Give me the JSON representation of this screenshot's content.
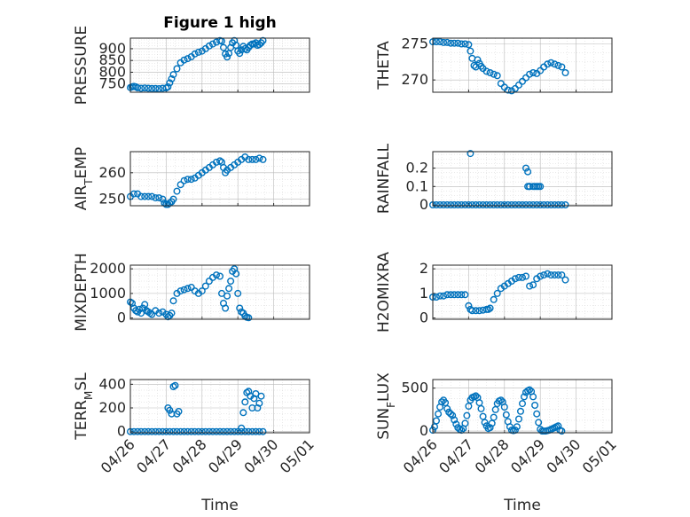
{
  "figure": {
    "title": "Figure 1 high",
    "xlabel": "Time",
    "xticks": [
      "04/26",
      "04/27",
      "04/28",
      "04/29",
      "04/30",
      "05/01"
    ],
    "marker_color": "#0072bd"
  },
  "chart_data": [
    {
      "id": "pressure",
      "type": "scatter",
      "title": "Figure 1 high",
      "ylabel": "PRESSURE",
      "ylabel_parts": [
        {
          "t": "PRESSURE"
        }
      ],
      "yticks": [
        750,
        800,
        850,
        900
      ],
      "ylim": [
        715,
        945
      ],
      "xlim": [
        0,
        5
      ],
      "x": [
        0.0,
        0.05,
        0.1,
        0.15,
        0.2,
        0.3,
        0.4,
        0.5,
        0.6,
        0.7,
        0.8,
        0.9,
        1.0,
        1.05,
        1.1,
        1.15,
        1.2,
        1.3,
        1.4,
        1.5,
        1.6,
        1.7,
        1.8,
        1.9,
        2.0,
        2.1,
        2.2,
        2.3,
        2.4,
        2.5,
        2.55,
        2.6,
        2.65,
        2.7,
        2.75,
        2.8,
        2.85,
        2.9,
        2.95,
        3.0,
        3.05,
        3.1,
        3.15,
        3.2,
        3.25,
        3.3,
        3.35,
        3.4,
        3.45,
        3.5,
        3.55,
        3.6,
        3.65,
        3.7
      ],
      "y": [
        735,
        738,
        740,
        738,
        734,
        732,
        733,
        732,
        731,
        731,
        730,
        732,
        733,
        738,
        755,
        772,
        790,
        815,
        840,
        852,
        858,
        866,
        878,
        885,
        890,
        900,
        912,
        920,
        928,
        935,
        932,
        905,
        878,
        865,
        880,
        905,
        925,
        935,
        915,
        890,
        880,
        895,
        910,
        900,
        895,
        905,
        915,
        920,
        920,
        925,
        915,
        918,
        925,
        935
      ]
    },
    {
      "id": "theta",
      "type": "scatter",
      "ylabel": "THETA",
      "ylabel_parts": [
        {
          "t": "THETA"
        }
      ],
      "yticks": [
        270,
        275
      ],
      "ylim": [
        268.3,
        275.8
      ],
      "xlim": [
        0,
        5
      ],
      "x": [
        0.0,
        0.1,
        0.2,
        0.3,
        0.4,
        0.5,
        0.6,
        0.7,
        0.8,
        0.9,
        1.0,
        1.05,
        1.1,
        1.15,
        1.2,
        1.25,
        1.3,
        1.35,
        1.4,
        1.5,
        1.6,
        1.7,
        1.8,
        1.9,
        2.0,
        2.1,
        2.2,
        2.3,
        2.4,
        2.5,
        2.6,
        2.7,
        2.8,
        2.9,
        3.0,
        3.1,
        3.2,
        3.3,
        3.4,
        3.5,
        3.6,
        3.7
      ],
      "y": [
        275.3,
        275.3,
        275.3,
        275.2,
        275.2,
        275.1,
        275.1,
        275.1,
        275.0,
        275.0,
        274.9,
        274.0,
        273.0,
        272.0,
        271.8,
        272.8,
        272.3,
        271.9,
        271.6,
        271.2,
        271.0,
        270.8,
        270.6,
        269.5,
        269.0,
        268.6,
        268.5,
        268.8,
        269.3,
        269.8,
        270.3,
        270.8,
        271.0,
        270.9,
        271.3,
        271.8,
        272.2,
        272.4,
        272.2,
        272.0,
        271.8,
        271.0
      ]
    },
    {
      "id": "air_temp",
      "type": "scatter",
      "ylabel": "AIR_TEMP",
      "ylabel_parts": [
        {
          "t": "AIR"
        },
        {
          "t": "T",
          "sub": true
        },
        {
          "t": "EMP"
        }
      ],
      "yticks": [
        250,
        260
      ],
      "ylim": [
        247.5,
        268
      ],
      "xlim": [
        0,
        5
      ],
      "x": [
        0.0,
        0.1,
        0.2,
        0.3,
        0.4,
        0.5,
        0.6,
        0.7,
        0.8,
        0.9,
        0.95,
        1.0,
        1.05,
        1.1,
        1.15,
        1.2,
        1.3,
        1.4,
        1.5,
        1.6,
        1.7,
        1.8,
        1.9,
        2.0,
        2.1,
        2.2,
        2.3,
        2.4,
        2.5,
        2.55,
        2.6,
        2.65,
        2.7,
        2.8,
        2.9,
        3.0,
        3.1,
        3.2,
        3.3,
        3.4,
        3.5,
        3.6,
        3.7
      ],
      "y": [
        251,
        252,
        252,
        251,
        251,
        251,
        251,
        250.5,
        250.5,
        250,
        248.5,
        248,
        248,
        248.5,
        249,
        250,
        253,
        255.5,
        257,
        257.5,
        257.5,
        258,
        259,
        260,
        261,
        262,
        263,
        264,
        264.5,
        264,
        262,
        260,
        261,
        262,
        263,
        264,
        265,
        266,
        265,
        265,
        265,
        265.5,
        265
      ]
    },
    {
      "id": "rainfall",
      "type": "scatter",
      "ylabel": "RAINFALL",
      "ylabel_parts": [
        {
          "t": "RAINFALL"
        }
      ],
      "yticks": [
        0,
        0.1,
        0.2
      ],
      "ylim": [
        -0.005,
        0.29
      ],
      "xlim": [
        0,
        5
      ],
      "x": [
        0.0,
        0.1,
        0.2,
        0.3,
        0.4,
        0.5,
        0.6,
        0.7,
        0.8,
        0.9,
        1.0,
        1.1,
        1.2,
        1.3,
        1.4,
        1.5,
        1.6,
        1.7,
        1.8,
        1.9,
        2.0,
        2.1,
        2.2,
        2.3,
        2.4,
        2.5,
        2.6,
        2.7,
        2.8,
        2.9,
        3.0,
        3.1,
        3.2,
        3.3,
        3.4,
        3.5,
        3.6,
        3.7,
        1.05,
        2.6,
        2.65,
        2.65,
        2.7,
        2.7,
        2.8,
        2.85,
        2.9,
        2.95,
        3.0
      ],
      "y": [
        0,
        0,
        0,
        0,
        0,
        0,
        0,
        0,
        0,
        0,
        0,
        0,
        0,
        0,
        0,
        0,
        0,
        0,
        0,
        0,
        0,
        0,
        0,
        0,
        0,
        0,
        0,
        0,
        0,
        0,
        0,
        0,
        0,
        0,
        0,
        0,
        0,
        0,
        0.28,
        0.2,
        0.18,
        0.1,
        0.1,
        0.1,
        0.1,
        0.1,
        0.1,
        0.1,
        0.1
      ]
    },
    {
      "id": "mixdepth",
      "type": "scatter",
      "ylabel": "MIXDEPTH",
      "ylabel_parts": [
        {
          "t": "MIXDEPTH"
        }
      ],
      "yticks": [
        0,
        1000,
        2000
      ],
      "ylim": [
        -50,
        2150
      ],
      "xlim": [
        0,
        5
      ],
      "x": [
        0.0,
        0.05,
        0.1,
        0.15,
        0.2,
        0.25,
        0.3,
        0.35,
        0.4,
        0.45,
        0.5,
        0.55,
        0.6,
        0.7,
        0.8,
        0.9,
        1.0,
        1.05,
        1.1,
        1.15,
        1.2,
        1.3,
        1.4,
        1.5,
        1.6,
        1.7,
        1.8,
        1.9,
        2.0,
        2.1,
        2.2,
        2.3,
        2.4,
        2.5,
        2.55,
        2.6,
        2.65,
        2.7,
        2.75,
        2.8,
        2.85,
        2.9,
        2.95,
        3.0,
        3.05,
        3.1,
        3.15,
        3.2,
        3.25,
        3.3
      ],
      "y": [
        650,
        600,
        400,
        300,
        250,
        350,
        200,
        400,
        550,
        300,
        250,
        200,
        150,
        300,
        200,
        250,
        150,
        50,
        100,
        200,
        700,
        1000,
        1100,
        1150,
        1200,
        1250,
        1100,
        1000,
        1100,
        1300,
        1500,
        1650,
        1750,
        1700,
        1000,
        600,
        400,
        900,
        1200,
        1500,
        1900,
        2000,
        1800,
        1000,
        400,
        250,
        200,
        80,
        30,
        10
      ]
    },
    {
      "id": "h2omixra",
      "type": "scatter",
      "ylabel": "H2OMIXRA",
      "ylabel_parts": [
        {
          "t": "H2OMIXRA"
        }
      ],
      "yticks": [
        0,
        1,
        2
      ],
      "ylim": [
        -0.05,
        2.15
      ],
      "xlim": [
        0,
        5
      ],
      "x": [
        0.0,
        0.1,
        0.2,
        0.3,
        0.4,
        0.5,
        0.6,
        0.7,
        0.8,
        0.9,
        1.0,
        1.05,
        1.1,
        1.2,
        1.3,
        1.4,
        1.5,
        1.55,
        1.6,
        1.7,
        1.8,
        1.9,
        2.0,
        2.1,
        2.2,
        2.3,
        2.4,
        2.5,
        2.6,
        2.7,
        2.8,
        2.9,
        3.0,
        3.1,
        3.2,
        3.3,
        3.4,
        3.5,
        3.6,
        3.7
      ],
      "y": [
        0.85,
        0.85,
        0.9,
        0.9,
        0.95,
        0.95,
        0.95,
        0.95,
        0.95,
        0.95,
        0.5,
        0.35,
        0.3,
        0.3,
        0.3,
        0.32,
        0.35,
        0.35,
        0.4,
        0.75,
        1.0,
        1.2,
        1.3,
        1.4,
        1.5,
        1.6,
        1.65,
        1.65,
        1.7,
        1.3,
        1.35,
        1.6,
        1.7,
        1.75,
        1.8,
        1.75,
        1.75,
        1.75,
        1.75,
        1.55
      ]
    },
    {
      "id": "terr_msl",
      "type": "scatter",
      "ylabel": "TERR_MSL",
      "ylabel_parts": [
        {
          "t": "TERR"
        },
        {
          "t": "M",
          "sub": true
        },
        {
          "t": "SL"
        }
      ],
      "yticks": [
        0,
        200,
        400
      ],
      "ylim": [
        -10,
        440
      ],
      "xlim": [
        0,
        5
      ],
      "x": [
        0.0,
        0.1,
        0.2,
        0.3,
        0.4,
        0.5,
        0.6,
        0.7,
        0.8,
        0.9,
        1.0,
        1.1,
        1.2,
        1.3,
        1.4,
        1.5,
        1.6,
        1.7,
        1.8,
        1.9,
        2.0,
        2.1,
        2.2,
        2.3,
        2.4,
        2.5,
        2.6,
        2.7,
        2.8,
        2.9,
        3.0,
        3.1,
        3.2,
        3.3,
        3.4,
        3.5,
        3.6,
        3.7,
        1.05,
        1.1,
        1.15,
        1.2,
        1.25,
        1.3,
        1.35,
        3.1,
        3.15,
        3.2,
        3.25,
        3.3,
        3.35,
        3.4,
        3.45,
        3.5,
        3.55,
        3.6,
        3.65
      ],
      "y": [
        0,
        0,
        0,
        0,
        0,
        0,
        0,
        0,
        0,
        0,
        0,
        0,
        0,
        0,
        0,
        0,
        0,
        0,
        0,
        0,
        0,
        0,
        0,
        0,
        0,
        0,
        0,
        0,
        0,
        0,
        0,
        0,
        0,
        0,
        0,
        0,
        0,
        0,
        200,
        180,
        150,
        380,
        390,
        150,
        170,
        30,
        160,
        250,
        330,
        340,
        300,
        200,
        280,
        320,
        200,
        240,
        300
      ]
    },
    {
      "id": "sun_flux",
      "type": "scatter",
      "ylabel": "SUN_FLUX",
      "ylabel_parts": [
        {
          "t": "SUN"
        },
        {
          "t": "F",
          "sub": true
        },
        {
          "t": "LUX"
        }
      ],
      "yticks": [
        0,
        500
      ],
      "ylim": [
        -20,
        600
      ],
      "xlim": [
        0,
        5
      ],
      "x": [
        0.0,
        0.05,
        0.1,
        0.15,
        0.2,
        0.25,
        0.3,
        0.35,
        0.4,
        0.45,
        0.5,
        0.55,
        0.6,
        0.65,
        0.7,
        0.75,
        0.8,
        0.85,
        0.9,
        0.95,
        1.0,
        1.05,
        1.1,
        1.15,
        1.2,
        1.25,
        1.3,
        1.35,
        1.4,
        1.45,
        1.5,
        1.55,
        1.6,
        1.65,
        1.7,
        1.75,
        1.8,
        1.85,
        1.9,
        1.95,
        2.0,
        2.05,
        2.1,
        2.15,
        2.2,
        2.25,
        2.3,
        2.35,
        2.4,
        2.45,
        2.5,
        2.55,
        2.6,
        2.65,
        2.7,
        2.75,
        2.8,
        2.85,
        2.9,
        2.95,
        3.0,
        3.05,
        3.1,
        3.15,
        3.2,
        3.25,
        3.3,
        3.35,
        3.4,
        3.45,
        3.5,
        3.55,
        3.6
      ],
      "y": [
        10,
        50,
        120,
        200,
        280,
        340,
        360,
        330,
        260,
        220,
        200,
        180,
        130,
        80,
        40,
        20,
        10,
        30,
        90,
        180,
        290,
        360,
        390,
        400,
        410,
        390,
        330,
        260,
        170,
        100,
        60,
        30,
        40,
        90,
        160,
        250,
        320,
        350,
        360,
        340,
        280,
        190,
        110,
        50,
        10,
        5,
        10,
        50,
        140,
        230,
        320,
        400,
        450,
        470,
        480,
        460,
        400,
        300,
        200,
        100,
        20,
        0,
        0,
        0,
        5,
        10,
        20,
        30,
        40,
        50,
        60,
        10,
        0
      ]
    }
  ]
}
